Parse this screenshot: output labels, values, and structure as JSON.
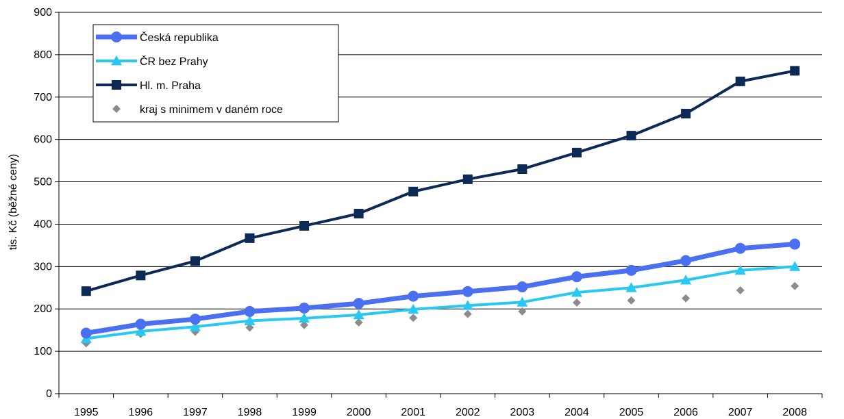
{
  "chart_data": {
    "type": "line",
    "title": "",
    "xlabel": "",
    "ylabel": "tis. Kč (běžné ceny)",
    "ylim": [
      0,
      900
    ],
    "yticks": [
      0,
      100,
      200,
      300,
      400,
      500,
      600,
      700,
      800,
      900
    ],
    "grid": "horizontal",
    "legend_position": "top-left",
    "categories": [
      "1995",
      "1996",
      "1997",
      "1998",
      "1999",
      "2000",
      "2001",
      "2002",
      "2003",
      "2004",
      "2005",
      "2006",
      "2007",
      "2008"
    ],
    "series": [
      {
        "name": "Česká republika",
        "marker": "circle",
        "color": "#4a6ff0",
        "values": [
          143,
          164,
          176,
          194,
          202,
          213,
          230,
          241,
          252,
          276,
          291,
          314,
          343,
          353
        ]
      },
      {
        "name": "ČR bez Prahy",
        "marker": "triangle",
        "color": "#28c8f0",
        "values": [
          130,
          147,
          158,
          172,
          178,
          186,
          199,
          208,
          216,
          239,
          250,
          268,
          291,
          300
        ]
      },
      {
        "name": "Hl. m. Praha",
        "marker": "square",
        "color": "#0d2a57",
        "values": [
          242,
          279,
          313,
          367,
          396,
          425,
          477,
          506,
          530,
          569,
          609,
          661,
          737,
          762
        ]
      },
      {
        "name": "kraj s minimem v daném roce",
        "marker": "diamond",
        "color": "#8c8c8c",
        "line": false,
        "values": [
          119,
          141,
          146,
          156,
          162,
          168,
          179,
          188,
          194,
          215,
          220,
          225,
          244,
          254
        ]
      }
    ]
  }
}
